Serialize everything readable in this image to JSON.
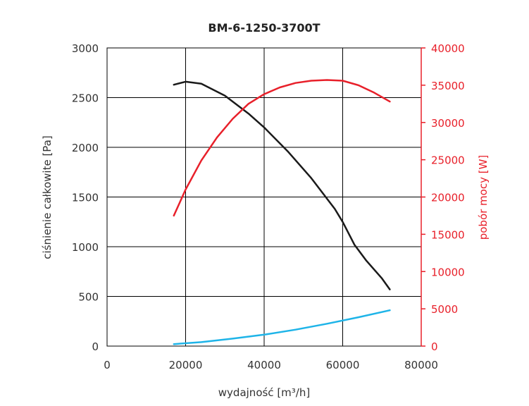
{
  "chart_data": {
    "type": "line",
    "title": "BM-6-1250-3700T",
    "xlabel": "wydajność [m³/h]",
    "ylabel_left": "ciśnienie całkowite [Pa]",
    "ylabel_right": "pobór mocy [W]",
    "xlim": [
      0,
      80000
    ],
    "ylim_left": [
      0,
      3000
    ],
    "ylim_right": [
      0,
      40000
    ],
    "x_ticks": [
      "0",
      "20000",
      "40000",
      "60000",
      "80000"
    ],
    "y_left_ticks": [
      "0",
      "500",
      "1000",
      "1500",
      "2000",
      "2500",
      "3000"
    ],
    "y_right_ticks": [
      "0",
      "5000",
      "10000",
      "15000",
      "20000",
      "25000",
      "30000",
      "35000",
      "40000"
    ],
    "grid": true,
    "colors": {
      "pressure": "#1a1a1a",
      "power": "#e8202a",
      "third": "#1eb4e8",
      "right_axis": "#e8202a",
      "grid": "#000000"
    },
    "series": [
      {
        "axis": "left",
        "color": "#1a1a1a",
        "x": [
          17000,
          20000,
          24000,
          30000,
          36000,
          40000,
          46000,
          52000,
          58000,
          60000,
          63000,
          66000,
          70000,
          72000
        ],
        "y": [
          2630,
          2660,
          2640,
          2520,
          2340,
          2200,
          1960,
          1690,
          1380,
          1250,
          1020,
          860,
          680,
          570
        ]
      },
      {
        "axis": "right",
        "color": "#e8202a",
        "x": [
          17000,
          20000,
          24000,
          28000,
          32000,
          36000,
          40000,
          44000,
          48000,
          52000,
          56000,
          60000,
          64000,
          68000,
          72000
        ],
        "y": [
          17500,
          21000,
          24900,
          28000,
          30500,
          32500,
          33800,
          34700,
          35300,
          35600,
          35700,
          35600,
          35000,
          34000,
          32800
        ]
      },
      {
        "axis": "left",
        "color": "#1eb4e8",
        "x": [
          17000,
          24000,
          32000,
          40000,
          48000,
          56000,
          64000,
          72000
        ],
        "y": [
          20,
          40,
          75,
          115,
          165,
          225,
          290,
          360
        ]
      }
    ]
  }
}
